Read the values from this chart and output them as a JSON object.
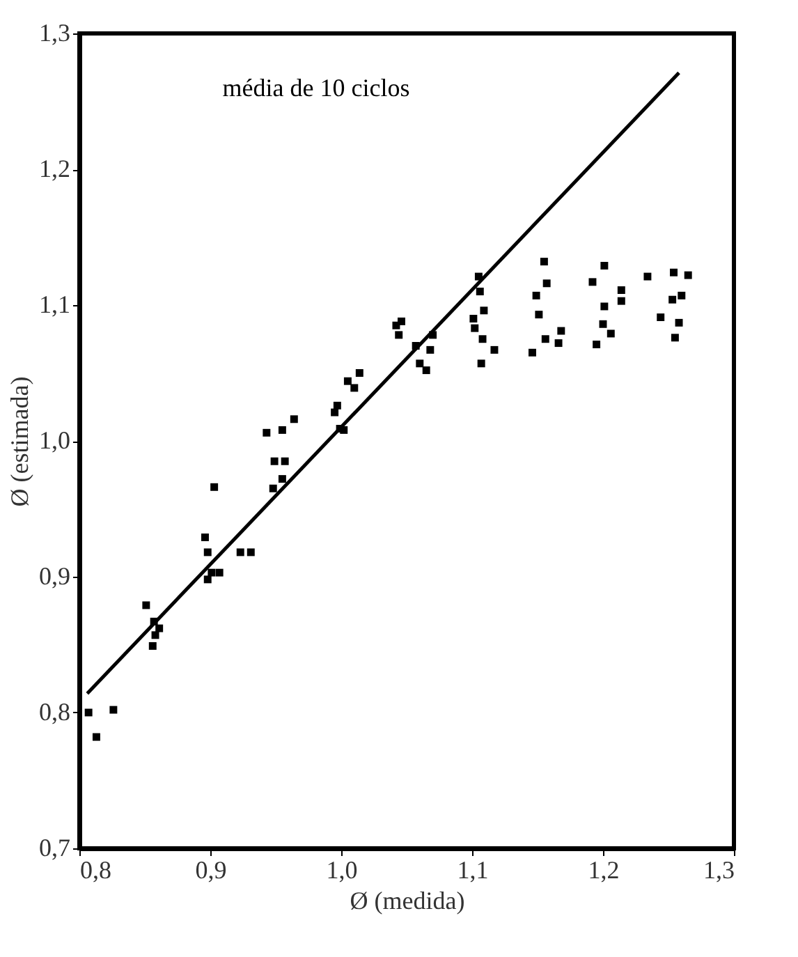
{
  "chart_data": {
    "type": "scatter",
    "xlabel": "Ø (medida)",
    "ylabel": "Ø (estimada)",
    "annotations": [
      "média de 10 ciclos"
    ],
    "grid": false,
    "xlim": [
      0.8,
      1.3
    ],
    "ylim": [
      0.7,
      1.3
    ],
    "xticks": [
      {
        "value": 0.8,
        "label": "0,8"
      },
      {
        "value": 0.9,
        "label": "0,9"
      },
      {
        "value": 1.0,
        "label": "1,0"
      },
      {
        "value": 1.1,
        "label": "1,1"
      },
      {
        "value": 1.2,
        "label": "1,2"
      },
      {
        "value": 1.3,
        "label": "1,3"
      }
    ],
    "yticks": [
      {
        "value": 0.7,
        "label": "0,7"
      },
      {
        "value": 0.8,
        "label": "0,8"
      },
      {
        "value": 0.9,
        "label": "0,9"
      },
      {
        "value": 1.0,
        "label": "1,0"
      },
      {
        "value": 1.1,
        "label": "1,1"
      },
      {
        "value": 1.2,
        "label": "1,2"
      },
      {
        "value": 1.3,
        "label": "1,3"
      }
    ],
    "series": [
      {
        "color": "#000000",
        "marker": "square",
        "x": [
          0.807,
          0.813,
          0.826,
          0.851,
          0.857,
          0.858,
          0.856,
          0.861,
          0.903,
          0.896,
          0.898,
          0.901,
          0.898,
          0.907,
          0.923,
          0.931,
          0.943,
          0.955,
          0.964,
          0.949,
          0.957,
          0.955,
          0.948,
          0.995,
          0.999,
          1.002,
          1.014,
          1.01,
          1.005,
          0.997,
          1.042,
          1.044,
          1.046,
          1.06,
          1.065,
          1.057,
          1.07,
          1.068,
          1.105,
          1.106,
          1.109,
          1.101,
          1.102,
          1.108,
          1.117,
          1.107,
          1.155,
          1.157,
          1.149,
          1.151,
          1.168,
          1.156,
          1.166,
          1.146,
          1.201,
          1.192,
          1.214,
          1.214,
          1.201,
          1.2,
          1.206,
          1.195,
          1.234,
          1.254,
          1.265,
          1.26,
          1.253,
          1.244,
          1.258,
          1.255
        ],
        "values": [
          0.8,
          0.782,
          0.802,
          0.879,
          0.867,
          0.857,
          0.849,
          0.862,
          0.966,
          0.929,
          0.918,
          0.903,
          0.898,
          0.903,
          0.918,
          0.918,
          1.006,
          1.008,
          1.016,
          0.985,
          0.985,
          0.972,
          0.965,
          1.021,
          1.009,
          1.008,
          1.05,
          1.039,
          1.044,
          1.026,
          1.085,
          1.078,
          1.088,
          1.057,
          1.052,
          1.07,
          1.078,
          1.067,
          1.121,
          1.11,
          1.096,
          1.09,
          1.083,
          1.075,
          1.067,
          1.057,
          1.132,
          1.116,
          1.107,
          1.093,
          1.081,
          1.075,
          1.072,
          1.065,
          1.129,
          1.117,
          1.111,
          1.103,
          1.099,
          1.086,
          1.079,
          1.071,
          1.121,
          1.124,
          1.122,
          1.107,
          1.104,
          1.091,
          1.087,
          1.076
        ]
      },
      {
        "type": "line",
        "color": "#000000",
        "x": [
          0.806,
          1.258
        ],
        "values": [
          0.814,
          1.271
        ]
      }
    ]
  }
}
